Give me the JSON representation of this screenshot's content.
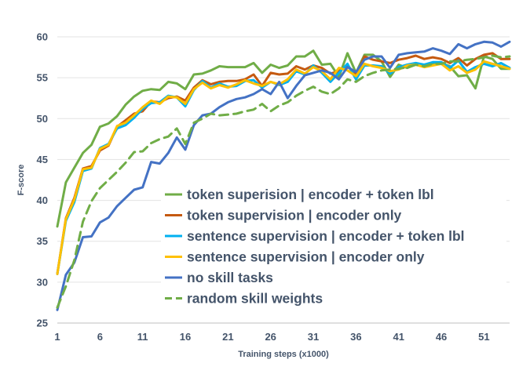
{
  "chart_data": {
    "type": "line",
    "title": "",
    "xlabel": "Training steps (x1000)",
    "ylabel": "F-score",
    "xlim": [
      1,
      54
    ],
    "ylim": [
      25,
      60
    ],
    "xticks": [
      "1",
      "6",
      "11",
      "16",
      "21",
      "26",
      "31",
      "36",
      "41",
      "46",
      "51"
    ],
    "yticks": [
      "25",
      "30",
      "35",
      "40",
      "45",
      "50",
      "55",
      "60"
    ],
    "grid": "horizontal",
    "legend_position": "bottom-right",
    "x": [
      1,
      2,
      3,
      4,
      5,
      6,
      7,
      8,
      9,
      10,
      11,
      12,
      13,
      14,
      15,
      16,
      17,
      18,
      19,
      20,
      21,
      22,
      23,
      24,
      25,
      26,
      27,
      28,
      29,
      30,
      31,
      32,
      33,
      34,
      35,
      36,
      37,
      38,
      39,
      40,
      41,
      42,
      43,
      44,
      45,
      46,
      47,
      48,
      49,
      50,
      51,
      52,
      53,
      54
    ],
    "series": [
      {
        "name": "token superision | encoder + token lbl",
        "color": "#70ad47",
        "dash": "solid",
        "values": [
          36.8,
          42.2,
          44.0,
          45.8,
          46.8,
          49.0,
          49.4,
          50.3,
          51.7,
          52.7,
          53.4,
          53.6,
          53.5,
          54.5,
          54.3,
          53.6,
          55.4,
          55.5,
          55.9,
          56.4,
          56.3,
          56.3,
          56.3,
          56.8,
          55.6,
          56.6,
          56.2,
          56.5,
          57.6,
          57.6,
          58.3,
          56.6,
          56.7,
          55.1,
          58.0,
          55.6,
          57.8,
          57.8,
          57.0,
          55.1,
          56.6,
          56.2,
          56.6,
          56.6,
          56.7,
          56.8,
          56.4,
          55.2,
          55.3,
          53.7,
          57.6,
          57.3,
          56.1,
          56.1
        ]
      },
      {
        "name": "token supervision | encoder only",
        "color": "#c55a11",
        "dash": "solid",
        "values": [
          31.0,
          37.8,
          40.3,
          43.9,
          44.2,
          46.1,
          46.7,
          49.0,
          49.8,
          50.6,
          50.9,
          52.1,
          52.0,
          52.5,
          52.7,
          52.2,
          53.8,
          54.7,
          54.2,
          54.5,
          54.6,
          54.6,
          54.8,
          55.4,
          54.0,
          55.6,
          55.4,
          55.5,
          56.4,
          56.0,
          56.5,
          56.2,
          55.5,
          55.8,
          56.5,
          55.4,
          57.6,
          57.2,
          57.0,
          56.8,
          57.2,
          57.4,
          57.7,
          57.3,
          57.5,
          57.3,
          56.8,
          57.4,
          56.5,
          57.3,
          57.8,
          58.0,
          57.3,
          57.3
        ]
      },
      {
        "name": "sentence supervision | encoder + token lbl",
        "color": "#00b0f0",
        "dash": "solid",
        "values": [
          31.0,
          37.5,
          39.8,
          43.6,
          43.9,
          46.4,
          46.9,
          48.8,
          49.2,
          50.1,
          51.2,
          51.9,
          52.0,
          52.8,
          52.6,
          51.5,
          53.5,
          54.6,
          53.8,
          54.3,
          53.9,
          54.0,
          54.6,
          54.7,
          53.8,
          54.5,
          54.1,
          54.5,
          55.8,
          55.4,
          56.5,
          55.6,
          54.5,
          55.6,
          56.7,
          54.8,
          56.5,
          56.5,
          56.4,
          55.5,
          56.3,
          56.6,
          56.8,
          56.6,
          56.9,
          56.9,
          56.2,
          57.1,
          55.7,
          56.3,
          56.7,
          56.4,
          56.8,
          56.2
        ]
      },
      {
        "name": "sentence supervision | encoder only",
        "color": "#ffc000",
        "dash": "solid",
        "values": [
          31.0,
          37.7,
          40.1,
          43.8,
          44.0,
          46.3,
          46.8,
          49.1,
          49.5,
          50.4,
          51.4,
          52.2,
          51.8,
          52.7,
          52.6,
          51.8,
          53.6,
          54.4,
          53.7,
          54.1,
          53.8,
          54.2,
          54.7,
          54.3,
          54.0,
          54.5,
          54.2,
          54.8,
          56.0,
          55.5,
          56.3,
          55.8,
          54.8,
          56.2,
          55.9,
          55.2,
          56.7,
          56.4,
          56.2,
          55.8,
          56.0,
          56.5,
          56.6,
          56.3,
          56.5,
          56.7,
          55.9,
          56.4,
          55.6,
          56.0,
          57.0,
          56.7,
          56.4,
          56.1
        ]
      },
      {
        "name": "no skill tasks",
        "color": "#4472c4",
        "dash": "solid",
        "values": [
          26.6,
          30.9,
          32.4,
          35.5,
          35.6,
          37.3,
          37.9,
          39.3,
          40.3,
          41.3,
          41.6,
          44.7,
          44.5,
          45.8,
          47.7,
          46.2,
          49.2,
          50.4,
          50.6,
          51.4,
          52.0,
          52.4,
          52.6,
          53.0,
          53.6,
          53.0,
          54.5,
          52.5,
          54.0,
          55.3,
          55.6,
          55.9,
          55.6,
          54.8,
          56.3,
          55.7,
          57.2,
          57.6,
          57.6,
          56.2,
          57.8,
          58.0,
          58.1,
          58.2,
          58.6,
          58.3,
          57.9,
          59.1,
          58.6,
          59.1,
          59.4,
          59.3,
          58.8,
          59.4
        ]
      },
      {
        "name": "random skill weights",
        "color": "#70ad47",
        "dash": "dashed",
        "values": [
          26.9,
          29.5,
          32.7,
          37.4,
          39.9,
          41.5,
          42.5,
          43.5,
          44.6,
          45.9,
          46.0,
          47.0,
          47.5,
          47.8,
          48.8,
          46.9,
          49.5,
          50.0,
          50.6,
          50.4,
          50.5,
          50.6,
          50.9,
          51.1,
          51.8,
          50.9,
          51.6,
          52.0,
          52.8,
          53.4,
          53.9,
          53.3,
          53.0,
          53.7,
          54.8,
          54.5,
          55.2,
          55.6,
          55.9,
          56.0,
          56.1,
          56.3,
          56.6,
          56.4,
          56.7,
          56.7,
          57.0,
          57.0,
          57.2,
          57.3,
          57.5,
          57.7,
          57.5,
          57.6
        ]
      }
    ]
  }
}
